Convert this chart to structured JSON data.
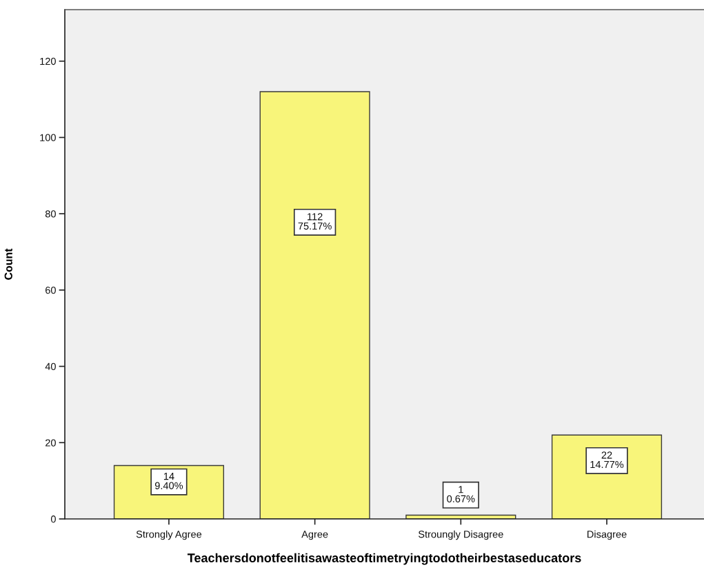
{
  "chart_data": {
    "type": "bar",
    "categories": [
      "Strongly Agree",
      "Agree",
      "Stroungly Disagree",
      "Disagree"
    ],
    "values": [
      14,
      112,
      1,
      22
    ],
    "value_labels": [
      "14\n9.40%",
      "112\n75.17%",
      "1\n0.67%",
      "22\n14.77%"
    ],
    "color": "#f8f57a",
    "xlabel": "Teachersdonotfeelitisawasteoftimetryingtodotheirbestaseducators",
    "ylabel": "Count",
    "ylim": [
      0,
      133.5
    ],
    "yticks": [
      0,
      20,
      40,
      60,
      80,
      100,
      120
    ]
  }
}
